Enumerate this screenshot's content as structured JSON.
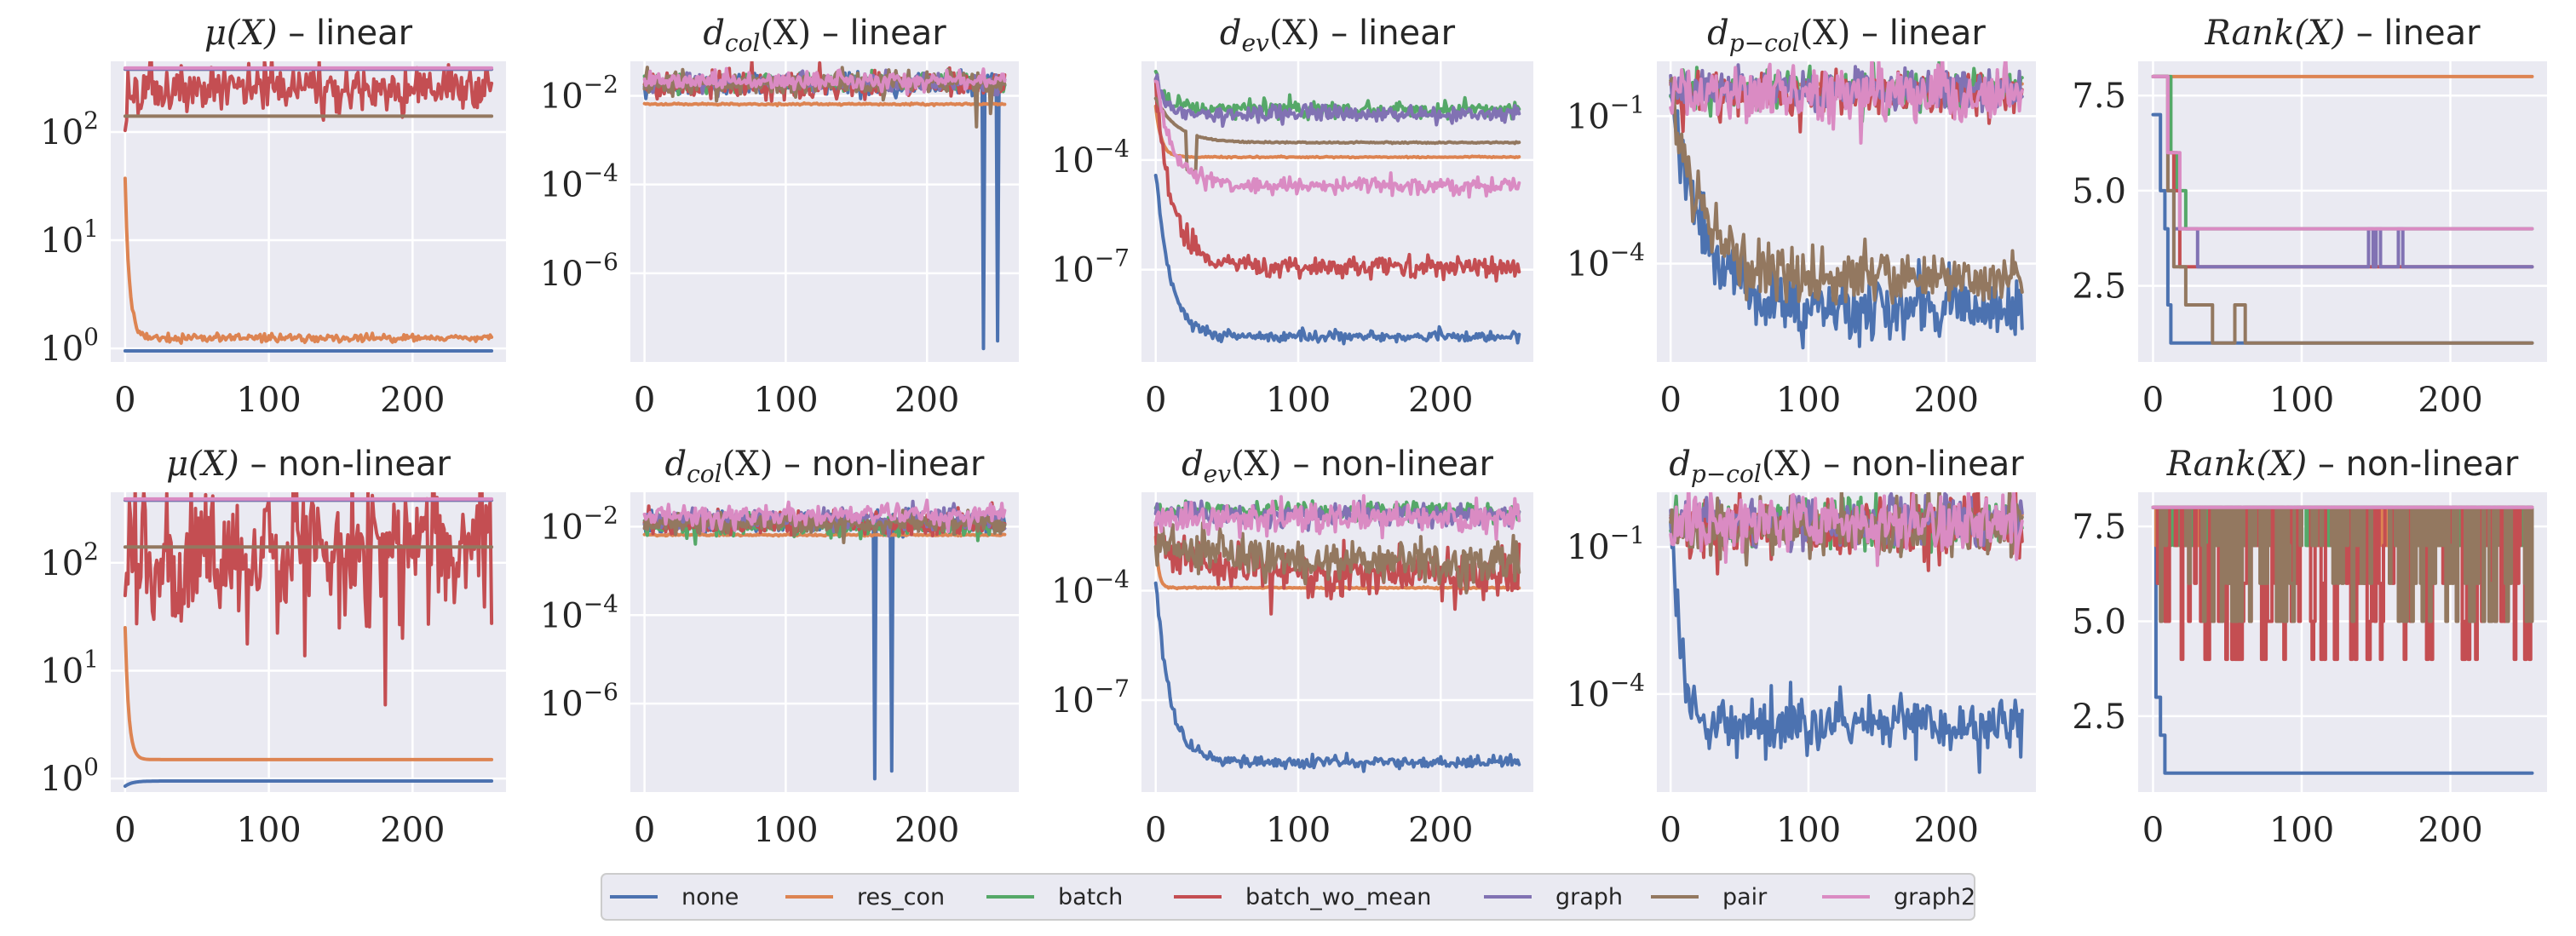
{
  "chart_data": [
    {
      "type": "line",
      "title": "μ(X) – linear",
      "title_math": "μ(X)",
      "title_suffix": " – linear",
      "yscale": "log",
      "ylim": [
        0.75,
        450
      ],
      "xlim": [
        -10,
        265
      ],
      "xticks": [
        0,
        100,
        200
      ],
      "yticks": [
        1,
        10,
        100
      ],
      "ytick_labels": [
        "10^0",
        "10^1",
        "10^2"
      ],
      "series": [
        {
          "name": "none",
          "style": "flat",
          "start": 1.0,
          "end": 0.95,
          "noise": 0.0
        },
        {
          "name": "res_con",
          "style": "decay",
          "start": 35,
          "end": 1.25,
          "tau": 3,
          "noise": 0.02
        },
        {
          "name": "batch",
          "style": "flat",
          "start": 380,
          "end": 380,
          "noise": 0.0
        },
        {
          "name": "batch_wo_mean",
          "style": "flat",
          "start": 160,
          "end": 260,
          "noise": 0.12,
          "ramp": 10
        },
        {
          "name": "graph",
          "style": "flat",
          "start": 380,
          "end": 380,
          "noise": 0.0
        },
        {
          "name": "pair",
          "style": "flat",
          "start": 140,
          "end": 140,
          "noise": 0.0
        },
        {
          "name": "graph2",
          "style": "flat",
          "start": 390,
          "end": 390,
          "noise": 0.0
        }
      ]
    },
    {
      "type": "line",
      "title": "d_col(X) – linear",
      "title_math": "d",
      "title_sub": "col",
      "title_math2": "(X)",
      "title_suffix": " – linear",
      "yscale": "log",
      "ylim": [
        1e-08,
        0.06
      ],
      "xlim": [
        -10,
        265
      ],
      "xticks": [
        0,
        100,
        200
      ],
      "yticks": [
        0.01,
        0.0001,
        1e-06
      ],
      "ytick_labels": [
        "10^-2",
        "10^-4",
        "10^-6"
      ],
      "series": [
        {
          "name": "none",
          "style": "flat",
          "start": 0.018,
          "end": 0.018,
          "noise": 0.12,
          "dips": [
            {
              "x": 240,
              "v": 2e-08
            },
            {
              "x": 250,
              "v": 3e-08
            }
          ]
        },
        {
          "name": "res_con",
          "style": "flat",
          "start": 0.0065,
          "end": 0.0065,
          "noise": 0.01
        },
        {
          "name": "batch",
          "style": "flat",
          "start": 0.02,
          "end": 0.02,
          "noise": 0.1
        },
        {
          "name": "batch_wo_mean",
          "style": "flat",
          "start": 0.015,
          "end": 0.018,
          "noise": 0.15
        },
        {
          "name": "graph",
          "style": "flat",
          "start": 0.02,
          "end": 0.02,
          "noise": 0.1
        },
        {
          "name": "pair",
          "style": "flat",
          "start": 0.02,
          "end": 0.02,
          "noise": 0.12,
          "dips": [
            {
              "x": 235,
              "v": 0.002
            },
            {
              "x": 245,
              "v": 0.004
            }
          ]
        },
        {
          "name": "graph2",
          "style": "flat",
          "start": 0.022,
          "end": 0.022,
          "noise": 0.1
        }
      ]
    },
    {
      "type": "line",
      "title": "d_ev(X) – linear",
      "title_math": "d",
      "title_sub": "ev",
      "title_math2": "(X)",
      "title_suffix": " – linear",
      "yscale": "log",
      "ylim": [
        3e-10,
        0.05
      ],
      "xlim": [
        -10,
        265
      ],
      "xticks": [
        0,
        100,
        200
      ],
      "yticks": [
        0.0001,
        1e-07
      ],
      "ytick_labels": [
        "10^-4",
        "10^-7"
      ],
      "series": [
        {
          "name": "none",
          "style": "decay",
          "start": 5e-05,
          "end": 1.5e-09,
          "tau": 10,
          "noise": 0.08
        },
        {
          "name": "res_con",
          "style": "decay",
          "start": 0.003,
          "end": 0.00012,
          "tau": 4,
          "noise": 0.01
        },
        {
          "name": "batch",
          "style": "decay",
          "start": 0.02,
          "end": 0.0025,
          "tau": 6,
          "noise": 0.12
        },
        {
          "name": "batch_wo_mean",
          "style": "decay",
          "start": 0.01,
          "end": 1.2e-07,
          "tau": 12,
          "noise": 0.15
        },
        {
          "name": "graph",
          "style": "decay",
          "start": 0.015,
          "end": 0.0018,
          "tau": 6,
          "noise": 0.12
        },
        {
          "name": "pair",
          "style": "decay",
          "start": 0.005,
          "end": 0.0003,
          "tau": 15,
          "noise": 0.01,
          "dipAt": {
            "x": 25,
            "v": 5e-06
          }
        },
        {
          "name": "graph2",
          "style": "decay",
          "start": 0.02,
          "end": 2e-05,
          "tau": 12,
          "noise": 0.12
        }
      ]
    },
    {
      "type": "line",
      "title": "d_p-col(X) – linear",
      "title_math": "d",
      "title_sub": "p−col",
      "title_math2": "(X)",
      "title_suffix": " – linear",
      "yscale": "log",
      "ylim": [
        1e-06,
        1.3
      ],
      "xlim": [
        -10,
        265
      ],
      "xticks": [
        0,
        100,
        200
      ],
      "yticks": [
        0.1,
        0.0001
      ],
      "ytick_labels": [
        "10^-1",
        "10^-4"
      ],
      "series": [
        {
          "name": "none",
          "style": "decay",
          "start": 0.4,
          "end": 1.3e-05,
          "tau": 22,
          "noise": 0.35
        },
        {
          "name": "res_con",
          "style": "flat",
          "start": 0.45,
          "end": 0.45,
          "noise": 0.01
        },
        {
          "name": "batch",
          "style": "flat",
          "start": 0.35,
          "end": 0.35,
          "noise": 0.2
        },
        {
          "name": "batch_wo_mean",
          "style": "flat",
          "start": 0.3,
          "end": 0.3,
          "noise": 0.25
        },
        {
          "name": "graph",
          "style": "flat",
          "start": 0.35,
          "end": 0.35,
          "noise": 0.2
        },
        {
          "name": "pair",
          "style": "decay",
          "start": 0.4,
          "end": 5e-05,
          "tau": 22,
          "noise": 0.3
        },
        {
          "name": "graph2",
          "style": "flat",
          "start": 0.3,
          "end": 0.3,
          "noise": 0.3
        }
      ]
    },
    {
      "type": "line",
      "title": "Rank(X) – linear",
      "title_math": "Rank(X)",
      "title_suffix": " – linear",
      "yscale": "linear",
      "ylim": [
        0.5,
        8.4
      ],
      "xlim": [
        -10,
        265
      ],
      "xticks": [
        0,
        100,
        200
      ],
      "yticks": [
        2.5,
        5.0,
        7.5
      ],
      "ytick_labels": [
        "2.5",
        "5.0",
        "7.5"
      ],
      "series": [
        {
          "name": "none",
          "style": "steps",
          "steps": [
            [
              0,
              7
            ],
            [
              5,
              5
            ],
            [
              8,
              4
            ],
            [
              10,
              2
            ],
            [
              12,
              1
            ],
            [
              255,
              1
            ]
          ]
        },
        {
          "name": "res_con",
          "style": "steps",
          "steps": [
            [
              0,
              8
            ],
            [
              255,
              8
            ]
          ]
        },
        {
          "name": "batch",
          "style": "steps",
          "steps": [
            [
              0,
              8
            ],
            [
              12,
              6
            ],
            [
              16,
              5
            ],
            [
              22,
              4
            ],
            [
              255,
              4
            ]
          ]
        },
        {
          "name": "batch_wo_mean",
          "style": "steps",
          "steps": [
            [
              0,
              8
            ],
            [
              10,
              6
            ],
            [
              14,
              5
            ],
            [
              18,
              3
            ],
            [
              255,
              3
            ]
          ]
        },
        {
          "name": "graph",
          "style": "steps",
          "steps": [
            [
              0,
              8
            ],
            [
              10,
              5
            ],
            [
              14,
              4
            ],
            [
              30,
              3
            ],
            [
              255,
              3
            ]
          ],
          "spikes": [
            [
              145,
              4
            ],
            [
              150,
              4
            ],
            [
              165,
              4
            ]
          ]
        },
        {
          "name": "pair",
          "style": "steps",
          "steps": [
            [
              0,
              8
            ],
            [
              10,
              5
            ],
            [
              14,
              3
            ],
            [
              22,
              2
            ],
            [
              40,
              1
            ],
            [
              55,
              2
            ],
            [
              62,
              1
            ],
            [
              255,
              1
            ]
          ]
        },
        {
          "name": "graph2",
          "style": "steps",
          "steps": [
            [
              0,
              8
            ],
            [
              10,
              6
            ],
            [
              18,
              4
            ],
            [
              255,
              4
            ]
          ]
        }
      ]
    },
    {
      "type": "line",
      "title": "μ(X) – non-linear",
      "title_math": "μ(X)",
      "title_suffix": " – non-linear",
      "yscale": "log",
      "ylim": [
        0.75,
        450
      ],
      "xlim": [
        -10,
        265
      ],
      "xticks": [
        0,
        100,
        200
      ],
      "yticks": [
        1,
        10,
        100
      ],
      "ytick_labels": [
        "10^0",
        "10^1",
        "10^2"
      ],
      "series": [
        {
          "name": "none",
          "style": "decay",
          "start": 0.85,
          "end": 0.95,
          "tau": 5,
          "noise": 0.0
        },
        {
          "name": "res_con",
          "style": "decay",
          "start": 25,
          "end": 1.5,
          "tau": 2.5,
          "noise": 0.0
        },
        {
          "name": "batch",
          "style": "flat",
          "start": 380,
          "end": 380,
          "noise": 0.0
        },
        {
          "name": "batch_wo_mean",
          "style": "flat",
          "start": 130,
          "end": 130,
          "noise": 0.35
        },
        {
          "name": "graph",
          "style": "flat",
          "start": 380,
          "end": 380,
          "noise": 0.0
        },
        {
          "name": "pair",
          "style": "flat",
          "start": 140,
          "end": 140,
          "noise": 0.0
        },
        {
          "name": "graph2",
          "style": "flat",
          "start": 390,
          "end": 390,
          "noise": 0.0
        }
      ]
    },
    {
      "type": "line",
      "title": "d_col(X) – non-linear",
      "title_math": "d",
      "title_sub": "col",
      "title_math2": "(X)",
      "title_suffix": " – non-linear",
      "yscale": "log",
      "ylim": [
        1e-08,
        0.06
      ],
      "xlim": [
        -10,
        265
      ],
      "xticks": [
        0,
        100,
        200
      ],
      "yticks": [
        0.01,
        0.0001,
        1e-06
      ],
      "ytick_labels": [
        "10^-2",
        "10^-4",
        "10^-6"
      ],
      "series": [
        {
          "name": "none",
          "style": "flat",
          "start": 0.013,
          "end": 0.013,
          "noise": 0.12,
          "dips": [
            {
              "x": 163,
              "v": 2e-08
            },
            {
              "x": 175,
              "v": 3e-08
            }
          ]
        },
        {
          "name": "res_con",
          "style": "flat",
          "start": 0.0065,
          "end": 0.0065,
          "noise": 0.01
        },
        {
          "name": "batch",
          "style": "flat",
          "start": 0.01,
          "end": 0.01,
          "noise": 0.12
        },
        {
          "name": "batch_wo_mean",
          "style": "flat",
          "start": 0.012,
          "end": 0.012,
          "noise": 0.15
        },
        {
          "name": "graph",
          "style": "flat",
          "start": 0.015,
          "end": 0.015,
          "noise": 0.12
        },
        {
          "name": "pair",
          "style": "flat",
          "start": 0.012,
          "end": 0.012,
          "noise": 0.12
        },
        {
          "name": "graph2",
          "style": "flat",
          "start": 0.018,
          "end": 0.018,
          "noise": 0.12
        }
      ]
    },
    {
      "type": "line",
      "title": "d_ev(X) – non-linear",
      "title_math": "d",
      "title_sub": "ev",
      "title_math2": "(X)",
      "title_suffix": " – non-linear",
      "yscale": "log",
      "ylim": [
        3e-10,
        0.05
      ],
      "xlim": [
        -10,
        265
      ],
      "xticks": [
        0,
        100,
        200
      ],
      "yticks": [
        0.0001,
        1e-07
      ],
      "ytick_labels": [
        "10^-4",
        "10^-7"
      ],
      "series": [
        {
          "name": "none",
          "style": "decay",
          "start": 0.0002,
          "end": 2e-09,
          "tau": 10,
          "noise": 0.08
        },
        {
          "name": "res_con",
          "style": "decay",
          "start": 0.003,
          "end": 0.00012,
          "tau": 2,
          "noise": 0.01
        },
        {
          "name": "batch",
          "style": "flat",
          "start": 0.015,
          "end": 0.015,
          "noise": 0.12
        },
        {
          "name": "batch_wo_mean",
          "style": "decay",
          "start": 0.003,
          "end": 0.0003,
          "tau": 30,
          "noise": 0.35
        },
        {
          "name": "graph",
          "style": "flat",
          "start": 0.012,
          "end": 0.012,
          "noise": 0.15
        },
        {
          "name": "pair",
          "style": "decay",
          "start": 0.003,
          "end": 0.0006,
          "tau": 40,
          "noise": 0.3
        },
        {
          "name": "graph2",
          "style": "flat",
          "start": 0.01,
          "end": 0.01,
          "noise": 0.2
        }
      ]
    },
    {
      "type": "line",
      "title": "d_p-col(X) – non-linear",
      "title_math": "d",
      "title_sub": "p−col",
      "title_math2": "(X)",
      "title_suffix": " – non-linear",
      "yscale": "log",
      "ylim": [
        1e-06,
        1.3
      ],
      "xlim": [
        -10,
        265
      ],
      "xticks": [
        0,
        100,
        200
      ],
      "yticks": [
        0.1,
        0.0001
      ],
      "ytick_labels": [
        "10^-1",
        "10^-4"
      ],
      "series": [
        {
          "name": "none",
          "style": "decay",
          "start": 0.4,
          "end": 2.5e-05,
          "tau": 7,
          "noise": 0.3
        },
        {
          "name": "res_con",
          "style": "flat",
          "start": 0.45,
          "end": 0.45,
          "noise": 0.01
        },
        {
          "name": "batch",
          "style": "flat",
          "start": 0.3,
          "end": 0.3,
          "noise": 0.25
        },
        {
          "name": "batch_wo_mean",
          "style": "flat",
          "start": 0.25,
          "end": 0.25,
          "noise": 0.35
        },
        {
          "name": "graph",
          "style": "flat",
          "start": 0.3,
          "end": 0.3,
          "noise": 0.25
        },
        {
          "name": "pair",
          "style": "flat",
          "start": 0.25,
          "end": 0.25,
          "noise": 0.3
        },
        {
          "name": "graph2",
          "style": "flat",
          "start": 0.3,
          "end": 0.3,
          "noise": 0.3
        }
      ]
    },
    {
      "type": "line",
      "title": "Rank(X) – non-linear",
      "title_math": "Rank(X)",
      "title_suffix": " – non-linear",
      "yscale": "linear",
      "ylim": [
        0.5,
        8.4
      ],
      "xlim": [
        -10,
        265
      ],
      "xticks": [
        0,
        100,
        200
      ],
      "yticks": [
        2.5,
        5.0,
        7.5
      ],
      "ytick_labels": [
        "2.5",
        "5.0",
        "7.5"
      ],
      "series": [
        {
          "name": "none",
          "style": "steps",
          "steps": [
            [
              0,
              8
            ],
            [
              2,
              3
            ],
            [
              5,
              2
            ],
            [
              8,
              1
            ],
            [
              255,
              1
            ]
          ]
        },
        {
          "name": "res_con",
          "style": "rank_noisy",
          "base": 8,
          "low": 7,
          "p": 0.3
        },
        {
          "name": "batch",
          "style": "rank_noisy",
          "base": 8,
          "low": 7,
          "p": 0.25
        },
        {
          "name": "batch_wo_mean",
          "style": "rank_noisy",
          "base": 8,
          "low": 4,
          "p": 0.45
        },
        {
          "name": "graph",
          "style": "steps",
          "steps": [
            [
              0,
              8
            ],
            [
              255,
              8
            ]
          ]
        },
        {
          "name": "pair",
          "style": "rank_noisy",
          "base": 8,
          "low": 5,
          "p": 0.35
        },
        {
          "name": "graph2",
          "style": "steps",
          "steps": [
            [
              0,
              8
            ],
            [
              255,
              8
            ]
          ]
        }
      ]
    }
  ],
  "legend": {
    "placement": "bottom-center",
    "entries": [
      {
        "name": "none",
        "label": "none",
        "color": "#4c72b0"
      },
      {
        "name": "res_con",
        "label": "res_con",
        "color": "#dd8452"
      },
      {
        "name": "batch",
        "label": "batch",
        "color": "#55a868"
      },
      {
        "name": "batch_wo_mean",
        "label": "batch_wo_mean",
        "color": "#c44e52"
      },
      {
        "name": "graph",
        "label": "graph",
        "color": "#8172b3"
      },
      {
        "name": "pair",
        "label": "pair",
        "color": "#937860"
      },
      {
        "name": "graph2",
        "label": "graph2",
        "color": "#da8bc3"
      }
    ]
  },
  "grid": true
}
